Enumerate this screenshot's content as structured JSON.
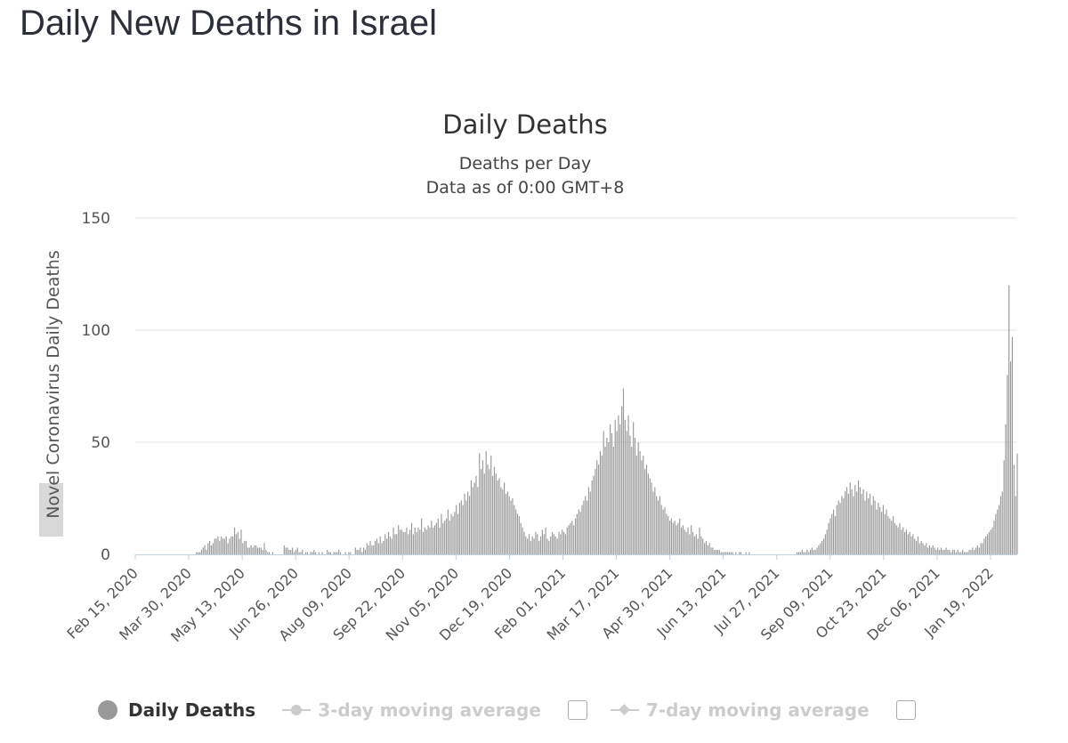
{
  "page": {
    "title": "Daily New Deaths in Israel"
  },
  "colors": {
    "bar": "#999999",
    "grid": "#e0e0e0",
    "axis_line": "#c0d0e0",
    "hidden_series": "#cccccc",
    "text": "#333333"
  },
  "legend": {
    "daily_label": "Daily Deaths",
    "avg3_label": "3-day moving average",
    "avg7_label": "7-day moving average"
  },
  "chart_data": {
    "type": "bar",
    "title": "Daily Deaths",
    "subtitle": "Deaths per Day",
    "subtitle2": "Data as of 0:00 GMT+8",
    "ylabel": "Novel Coronavirus Daily Deaths",
    "ylim": [
      0,
      150
    ],
    "yticks": [
      0,
      50,
      100,
      150
    ],
    "grid": true,
    "legend_position": "bottom",
    "x_start": "Feb 15, 2020",
    "x_end": "Feb 10, 2022",
    "xticks": [
      "Feb 15, 2020",
      "Mar 30, 2020",
      "May 13, 2020",
      "Jun 26, 2020",
      "Aug 09, 2020",
      "Sep 22, 2020",
      "Nov 05, 2020",
      "Dec 19, 2020",
      "Feb 01, 2021",
      "Mar 17, 2021",
      "Apr 30, 2021",
      "Jun 13, 2021",
      "Jul 27, 2021",
      "Sep 09, 2021",
      "Oct 23, 2021",
      "Dec 06, 2021",
      "Jan 19, 2022"
    ],
    "series": [
      {
        "name": "Daily Deaths",
        "values": [
          0,
          0,
          0,
          0,
          0,
          0,
          0,
          0,
          0,
          0,
          0,
          0,
          0,
          0,
          0,
          0,
          0,
          0,
          0,
          0,
          0,
          0,
          0,
          0,
          0,
          0,
          0,
          0,
          0,
          0,
          0,
          0,
          0,
          0,
          0,
          0,
          0,
          1,
          1,
          1,
          2,
          3,
          4,
          2,
          5,
          6,
          4,
          5,
          7,
          7,
          8,
          6,
          8,
          7,
          7,
          8,
          5,
          7,
          8,
          8,
          12,
          9,
          10,
          7,
          11,
          5,
          6,
          6,
          3,
          3,
          4,
          3,
          4,
          4,
          3,
          3,
          3,
          2,
          5,
          2,
          1,
          1,
          0,
          1,
          0,
          0,
          0,
          0,
          0,
          0,
          4,
          3,
          3,
          2,
          2,
          3,
          1,
          2,
          3,
          1,
          1,
          2,
          0,
          1,
          1,
          0,
          1,
          1,
          2,
          1,
          0,
          1,
          0,
          1,
          0,
          0,
          2,
          1,
          1,
          0,
          1,
          1,
          1,
          2,
          1,
          0,
          0,
          1,
          0,
          1,
          1,
          0,
          0,
          3,
          2,
          2,
          3,
          1,
          3,
          2,
          5,
          4,
          6,
          4,
          4,
          6,
          7,
          5,
          8,
          5,
          6,
          9,
          7,
          10,
          8,
          7,
          12,
          9,
          9,
          13,
          11,
          11,
          10,
          10,
          12,
          9,
          11,
          14,
          9,
          12,
          10,
          12,
          11,
          16,
          10,
          12,
          11,
          13,
          12,
          15,
          12,
          13,
          14,
          16,
          12,
          18,
          14,
          15,
          16,
          20,
          15,
          18,
          17,
          19,
          22,
          18,
          23,
          24,
          22,
          27,
          24,
          28,
          26,
          33,
          30,
          32,
          35,
          30,
          45,
          38,
          42,
          36,
          46,
          40,
          38,
          44,
          35,
          39,
          36,
          33,
          34,
          30,
          29,
          32,
          27,
          28,
          26,
          24,
          25,
          22,
          20,
          18,
          17,
          14,
          12,
          10,
          8,
          7,
          9,
          6,
          8,
          7,
          10,
          9,
          6,
          8,
          11,
          9,
          12,
          7,
          6,
          8,
          10,
          9,
          8,
          7,
          10,
          9,
          11,
          10,
          9,
          12,
          13,
          14,
          15,
          13,
          16,
          18,
          20,
          19,
          22,
          24,
          26,
          24,
          30,
          28,
          33,
          35,
          38,
          42,
          40,
          46,
          44,
          55,
          48,
          52,
          50,
          58,
          54,
          48,
          60,
          55,
          62,
          58,
          66,
          74,
          60,
          55,
          62,
          53,
          48,
          59,
          52,
          44,
          50,
          46,
          42,
          44,
          38,
          40,
          36,
          34,
          32,
          28,
          30,
          26,
          24,
          26,
          22,
          20,
          21,
          18,
          17,
          15,
          16,
          14,
          15,
          13,
          14,
          16,
          12,
          13,
          11,
          10,
          12,
          9,
          13,
          10,
          8,
          9,
          7,
          12,
          8,
          7,
          5,
          6,
          4,
          5,
          3,
          3,
          2,
          2,
          2,
          2,
          1,
          1,
          1,
          1,
          1,
          1,
          1,
          1,
          0,
          1,
          0,
          1,
          1,
          0,
          0,
          1,
          0,
          1,
          0,
          0,
          0,
          0,
          0,
          0,
          0,
          0,
          0,
          0,
          0,
          0,
          0,
          0,
          0,
          0,
          0,
          0,
          0,
          0,
          0,
          0,
          0,
          0,
          0,
          0,
          0,
          0,
          1,
          1,
          1,
          2,
          1,
          1,
          2,
          1,
          2,
          3,
          2,
          2,
          3,
          4,
          5,
          6,
          7,
          9,
          11,
          14,
          16,
          18,
          20,
          17,
          22,
          24,
          23,
          26,
          25,
          28,
          30,
          27,
          32,
          29,
          26,
          31,
          28,
          33,
          30,
          27,
          29,
          24,
          28,
          25,
          27,
          22,
          26,
          24,
          20,
          23,
          21,
          19,
          22,
          18,
          20,
          17,
          16,
          15,
          17,
          14,
          13,
          12,
          14,
          11,
          12,
          10,
          11,
          9,
          10,
          8,
          9,
          7,
          6,
          8,
          5,
          6,
          5,
          4,
          5,
          3,
          4,
          3,
          4,
          3,
          2,
          3,
          2,
          3,
          2,
          2,
          3,
          2,
          2,
          1,
          2,
          2,
          1,
          2,
          1,
          1,
          2,
          1,
          1,
          1,
          2,
          2,
          3,
          2,
          3,
          4,
          3,
          5,
          5,
          7,
          8,
          9,
          10,
          11,
          12,
          15,
          18,
          20,
          22,
          26,
          28,
          42,
          58,
          80,
          120,
          86,
          97,
          40,
          26,
          45
        ]
      },
      {
        "name": "3-day moving average",
        "values": []
      },
      {
        "name": "7-day moving average",
        "values": []
      }
    ]
  }
}
